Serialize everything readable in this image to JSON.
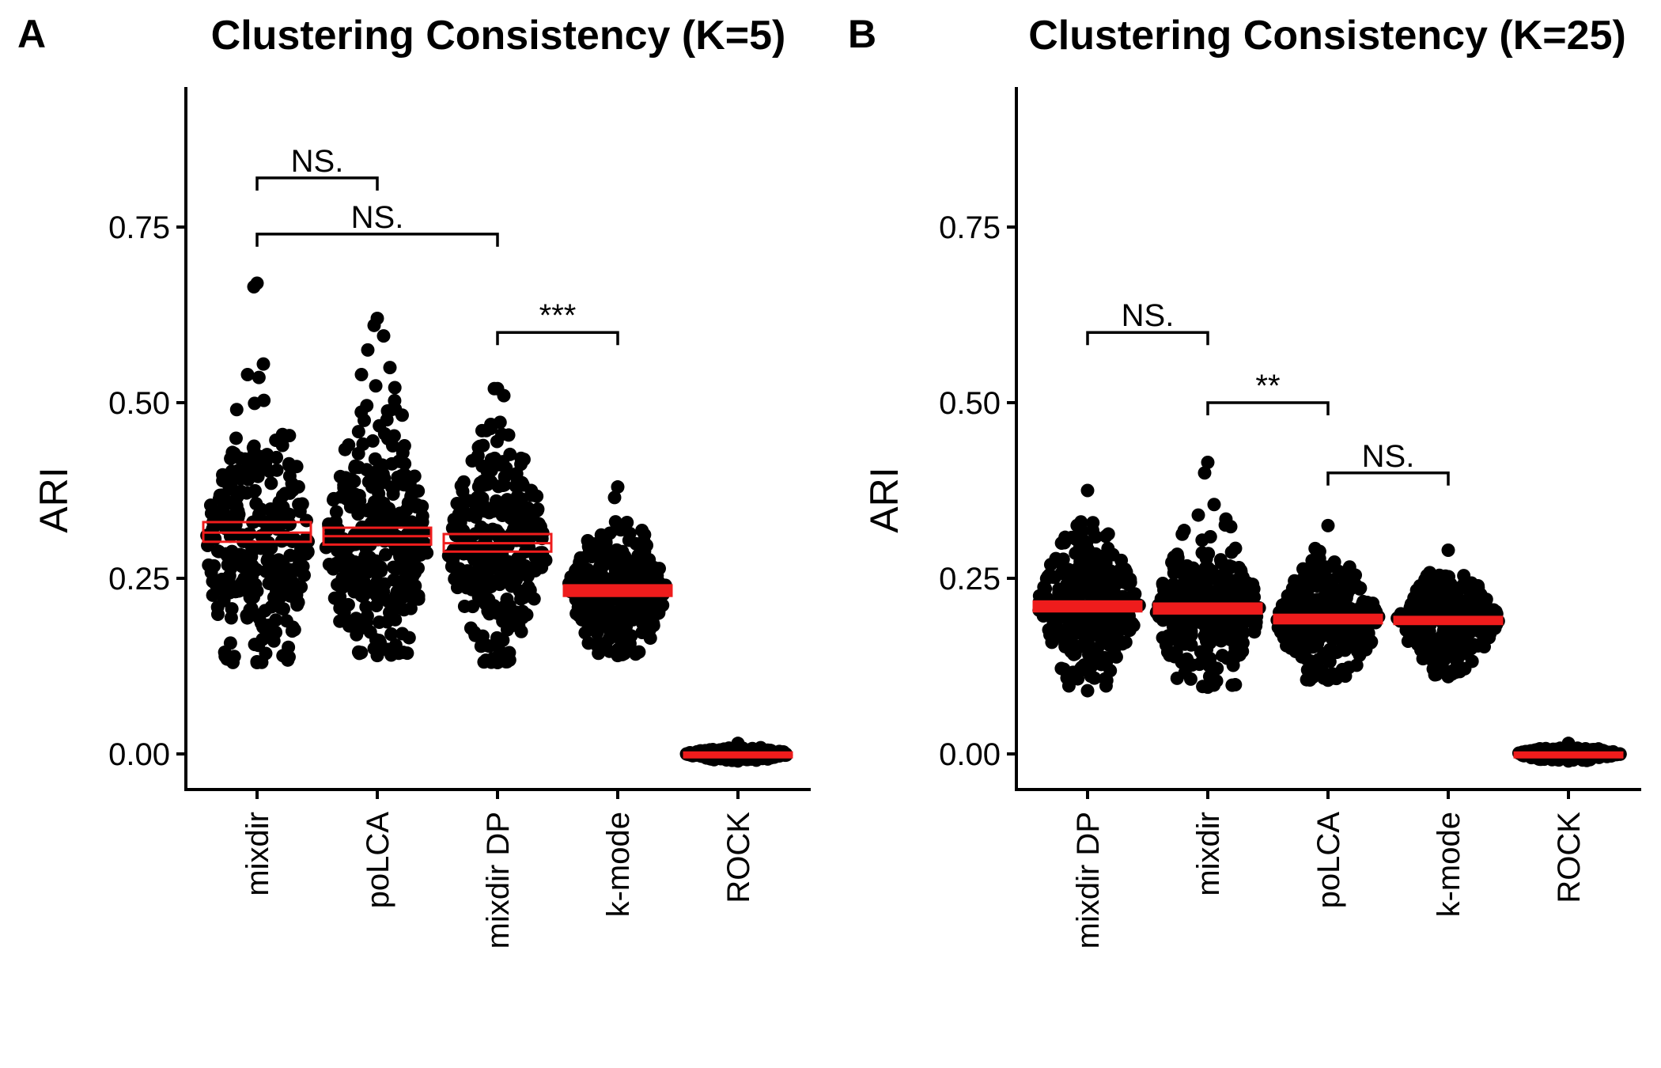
{
  "chart_data": [
    {
      "type": "scatter",
      "panel": "A",
      "title": "Clustering Consistency (K=5)",
      "ylabel": "ARI",
      "ylim": [
        -0.05,
        0.95
      ],
      "yticks": [
        0.0,
        0.25,
        0.5,
        0.75
      ],
      "ytick_labels": [
        "0.00",
        "0.25",
        "0.50",
        "0.75"
      ],
      "categories": [
        "mixdir",
        "poLCA",
        "mixdir DP",
        "k-mode",
        "ROCK"
      ],
      "distributions": [
        {
          "name": "mixdir",
          "min": 0.13,
          "max": 0.67,
          "center": 0.3,
          "spread": 0.085,
          "n": 300,
          "mean": 0.315,
          "ci": [
            0.302,
            0.33
          ],
          "outliers": [
            0.67,
            0.665,
            0.555,
            0.54
          ]
        },
        {
          "name": "poLCA",
          "min": 0.14,
          "max": 0.62,
          "center": 0.3,
          "spread": 0.08,
          "n": 300,
          "mean": 0.31,
          "ci": [
            0.298,
            0.322
          ],
          "outliers": [
            0.62,
            0.61,
            0.595,
            0.575,
            0.55,
            0.54
          ]
        },
        {
          "name": "mixdir DP",
          "min": 0.13,
          "max": 0.52,
          "center": 0.3,
          "spread": 0.08,
          "n": 300,
          "mean": 0.3,
          "ci": [
            0.288,
            0.313
          ],
          "outliers": [
            0.52,
            0.52,
            0.51
          ]
        },
        {
          "name": "k-mode",
          "min": 0.14,
          "max": 0.38,
          "center": 0.23,
          "spread": 0.045,
          "n": 300,
          "mean": 0.232,
          "ci": [
            0.225,
            0.24
          ],
          "outliers": [
            0.38,
            0.365
          ]
        },
        {
          "name": "ROCK",
          "min": -0.01,
          "max": 0.015,
          "center": 0.0,
          "spread": 0.004,
          "n": 300,
          "mean": 0.0,
          "ci": [
            -0.002,
            0.002
          ],
          "outliers": [
            0.015
          ]
        }
      ],
      "comparisons": [
        {
          "from": "mixdir",
          "to": "poLCA",
          "label": "NS.",
          "y": 0.82
        },
        {
          "from": "mixdir",
          "to": "mixdir DP",
          "label": "NS.",
          "y": 0.74
        },
        {
          "from": "mixdir DP",
          "to": "k-mode",
          "label": "***",
          "y": 0.6
        }
      ]
    },
    {
      "type": "scatter",
      "panel": "B",
      "title": "Clustering Consistency (K=25)",
      "ylabel": "ARI",
      "ylim": [
        -0.05,
        0.95
      ],
      "yticks": [
        0.0,
        0.25,
        0.5,
        0.75
      ],
      "ytick_labels": [
        "0.00",
        "0.25",
        "0.50",
        "0.75"
      ],
      "categories": [
        "mixdir DP",
        "mixdir",
        "poLCA",
        "k-mode",
        "ROCK"
      ],
      "distributions": [
        {
          "name": "mixdir DP",
          "min": 0.09,
          "max": 0.375,
          "center": 0.21,
          "spread": 0.05,
          "n": 300,
          "mean": 0.21,
          "ci": [
            0.203,
            0.217
          ],
          "outliers": [
            0.375
          ]
        },
        {
          "name": "mixdir",
          "min": 0.095,
          "max": 0.415,
          "center": 0.205,
          "spread": 0.045,
          "n": 300,
          "mean": 0.207,
          "ci": [
            0.2,
            0.214
          ],
          "outliers": [
            0.415,
            0.4,
            0.355,
            0.34
          ]
        },
        {
          "name": "poLCA",
          "min": 0.105,
          "max": 0.325,
          "center": 0.19,
          "spread": 0.04,
          "n": 300,
          "mean": 0.192,
          "ci": [
            0.186,
            0.198
          ],
          "outliers": [
            0.325
          ]
        },
        {
          "name": "k-mode",
          "min": 0.11,
          "max": 0.29,
          "center": 0.19,
          "spread": 0.038,
          "n": 300,
          "mean": 0.19,
          "ci": [
            0.185,
            0.195
          ],
          "outliers": [
            0.29
          ]
        },
        {
          "name": "ROCK",
          "min": -0.01,
          "max": 0.015,
          "center": 0.0,
          "spread": 0.004,
          "n": 300,
          "mean": 0.0,
          "ci": [
            -0.002,
            0.002
          ],
          "outliers": [
            0.015
          ]
        }
      ],
      "comparisons": [
        {
          "from": "mixdir DP",
          "to": "mixdir",
          "label": "NS.",
          "y": 0.6
        },
        {
          "from": "mixdir",
          "to": "poLCA",
          "label": "**",
          "y": 0.5
        },
        {
          "from": "poLCA",
          "to": "k-mode",
          "label": "NS.",
          "y": 0.4
        }
      ]
    }
  ],
  "colors": {
    "points": "#000000",
    "mean_box": "#ee1c1c",
    "axis": "#000000"
  }
}
